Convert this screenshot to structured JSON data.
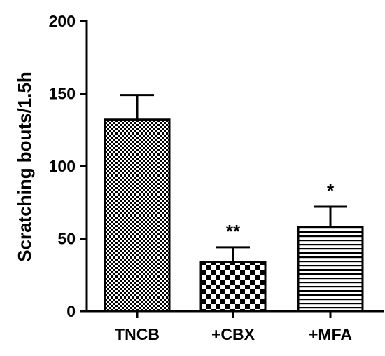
{
  "chart_data": {
    "type": "bar",
    "title": "",
    "xlabel": "",
    "ylabel": "Scratching bouts/1.5h",
    "ylim": [
      0,
      200
    ],
    "yticks": [
      "0",
      "50",
      "100",
      "150",
      "200"
    ],
    "categories": [
      "TNCB",
      "+CBX",
      "+MFA"
    ],
    "values": [
      132,
      34,
      58
    ],
    "errors": [
      17,
      10,
      14
    ],
    "annotations": [
      "",
      "**",
      "*"
    ],
    "fill_patterns": [
      "fine-checker",
      "coarse-checker",
      "horizontal-lines"
    ],
    "grid": false,
    "legend": "none",
    "colors": {
      "axis": "#000000",
      "bar_pattern_dark": "#000000",
      "bar_pattern_light": "#ffffff"
    }
  }
}
